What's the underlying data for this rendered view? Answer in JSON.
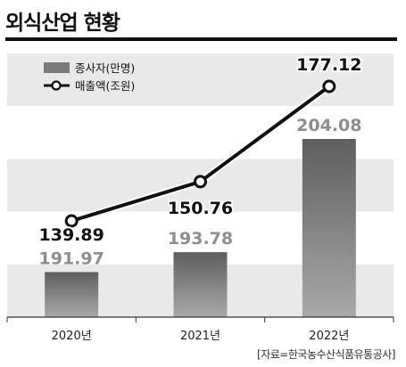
{
  "title": "외식산업 현황",
  "source": "[자료=한국농수산식품유통공사]",
  "chart_data": {
    "type": "bar",
    "categories": [
      "2020년",
      "2021년",
      "2022년"
    ],
    "series": [
      {
        "name": "종사자(만명)",
        "type": "bar",
        "values": [
          191.97,
          193.78,
          204.08
        ],
        "labels": [
          "191.97",
          "193.78",
          "204.08"
        ],
        "color": "#7a7a7a"
      },
      {
        "name": "매출액(조원)",
        "type": "line",
        "values": [
          139.89,
          150.76,
          177.12
        ],
        "labels": [
          "139.89",
          "150.76",
          "177.12"
        ],
        "color": "#111111"
      }
    ],
    "legend_position": "top-left",
    "grid": "horizontal bands"
  }
}
